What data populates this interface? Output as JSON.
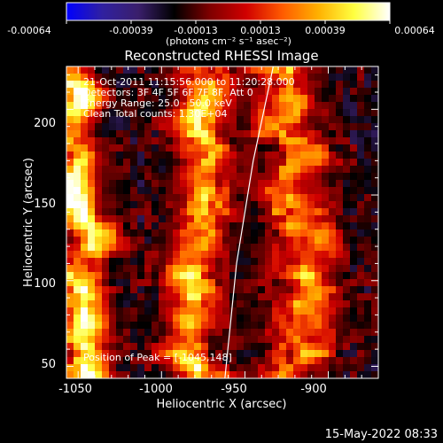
{
  "colorbar": {
    "ticks": [
      "-0.00064",
      "-0.00039",
      "-0.00013",
      "0.00013",
      "0.00039",
      "0.00064"
    ],
    "unit_label": "(photons cm⁻² s⁻¹ asec⁻²)",
    "stops": [
      "#0000ff",
      "#3020a0",
      "#3a1f6b",
      "#000000",
      "#800000",
      "#d00000",
      "#ff5a00",
      "#ffb000",
      "#ffff40",
      "#ffffff"
    ]
  },
  "plot": {
    "title": "Reconstructed RHESSI Image",
    "xlabel": "Heliocentric X (arcsec)",
    "ylabel": "Heliocentric Y (arcsec)",
    "x_ticks": [
      "-1050",
      "-1000",
      "-950",
      "-900"
    ],
    "y_ticks": [
      "200",
      "150",
      "100",
      "50"
    ],
    "annotations": [
      "21-Oct-2011 11:15:56.000 to 11:20:28.000",
      "Detectors: 3F 4F 5F 6F 7F 8F, Att 0",
      "Energy Range: 25.0 - 50.0 keV",
      "Clean     Total counts: 1.30E+04"
    ],
    "peak_label": "Position of Peak = [-1045,148]"
  },
  "footer": {
    "date": "15-May-2022 08:33"
  },
  "chart_data": {
    "type": "heatmap",
    "title": "Reconstructed RHESSI Image",
    "xlabel": "Heliocentric X (arcsec)",
    "ylabel": "Heliocentric Y (arcsec)",
    "xlim": [
      -1057,
      -870
    ],
    "ylim": [
      43,
      225
    ],
    "colorbar_range": [
      -0.00064,
      0.00064
    ],
    "colorbar_ticks": [
      -0.00064,
      -0.00039,
      -0.00013,
      0.00013,
      0.00039,
      0.00064
    ],
    "peak_position": [
      -1045,
      148
    ],
    "bright_bands": [
      {
        "x_center": -1047,
        "width": 20,
        "amplitude": 1.0
      },
      {
        "x_center": -980,
        "width": 22,
        "amplitude": 0.8
      },
      {
        "x_center": -920,
        "width": 26,
        "amplitude": 0.7
      }
    ],
    "limb_curve": [
      [
        -933,
        225
      ],
      [
        -945,
        170
      ],
      [
        -955,
        110
      ],
      [
        -962,
        43
      ]
    ]
  }
}
